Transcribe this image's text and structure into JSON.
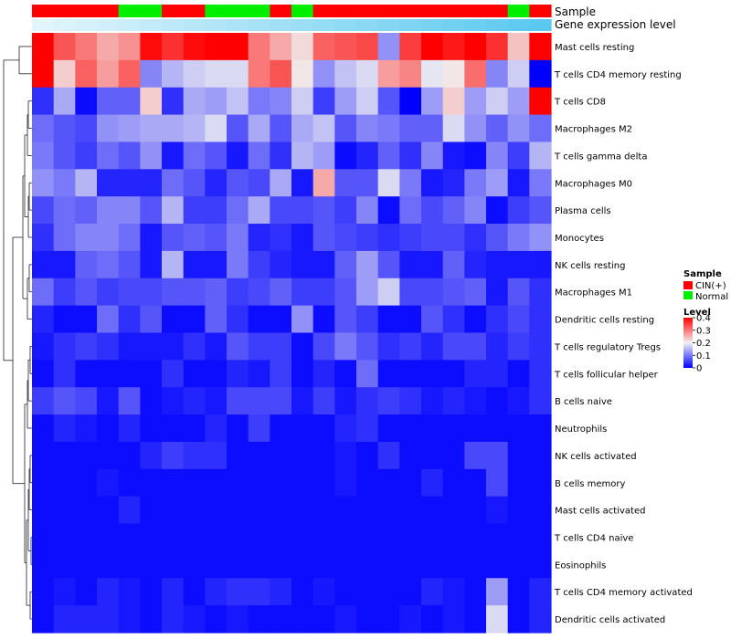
{
  "chart_data": {
    "type": "heatmap",
    "annotation_tracks": [
      "Sample",
      "Gene expression level"
    ],
    "sample_groups": [
      "CIN",
      "CIN",
      "CIN",
      "CIN",
      "Normal",
      "Normal",
      "CIN",
      "CIN",
      "Normal",
      "Normal",
      "Normal",
      "CIN",
      "Normal",
      "CIN",
      "CIN",
      "CIN",
      "CIN",
      "CIN",
      "CIN",
      "CIN",
      "CIN",
      "CIN",
      "Normal",
      "CIN"
    ],
    "rows": [
      "Mast cells resting",
      "T cells CD4 memory resting",
      "T cells CD8",
      "Macrophages M2",
      "T cells gamma delta",
      "Macrophages M0",
      "Plasma cells",
      "Monocytes",
      "NK cells resting",
      "Macrophages M1",
      "Dendritic cells resting",
      "T cells regulatory  Tregs",
      "T cells follicular helper",
      "B cells naive",
      "Neutrophils",
      "NK cells activated",
      "B cells memory",
      "Mast cells activated",
      "T cells CD4 naive",
      "Eosinophils",
      "T cells CD4 memory activated",
      "Dendritic cells activated"
    ],
    "values": [
      [
        0.4,
        0.33,
        0.3,
        0.26,
        0.28,
        0.39,
        0.36,
        0.39,
        0.4,
        0.4,
        0.3,
        0.26,
        0.22,
        0.32,
        0.33,
        0.34,
        0.12,
        0.35,
        0.4,
        0.38,
        0.4,
        0.36,
        0.24,
        0.4
      ],
      [
        0.4,
        0.23,
        0.32,
        0.27,
        0.32,
        0.11,
        0.15,
        0.17,
        0.18,
        0.18,
        0.3,
        0.33,
        0.21,
        0.12,
        0.16,
        0.18,
        0.27,
        0.29,
        0.19,
        0.21,
        0.31,
        0.11,
        0.17,
        0.0
      ],
      [
        0.04,
        0.14,
        0.01,
        0.08,
        0.08,
        0.23,
        0.04,
        0.14,
        0.13,
        0.16,
        0.1,
        0.11,
        0.17,
        0.05,
        0.13,
        0.17,
        0.07,
        0.0,
        0.13,
        0.23,
        0.13,
        0.17,
        0.13,
        0.4
      ],
      [
        0.09,
        0.07,
        0.06,
        0.12,
        0.13,
        0.14,
        0.14,
        0.15,
        0.18,
        0.07,
        0.14,
        0.07,
        0.14,
        0.16,
        0.07,
        0.11,
        0.1,
        0.08,
        0.08,
        0.18,
        0.12,
        0.08,
        0.12,
        0.09
      ],
      [
        0.1,
        0.07,
        0.05,
        0.09,
        0.07,
        0.12,
        0.02,
        0.09,
        0.07,
        0.02,
        0.09,
        0.04,
        0.15,
        0.13,
        0.01,
        0.03,
        0.08,
        0.04,
        0.11,
        0.02,
        0.01,
        0.11,
        0.05,
        0.15
      ],
      [
        0.12,
        0.1,
        0.15,
        0.03,
        0.03,
        0.03,
        0.09,
        0.07,
        0.03,
        0.07,
        0.06,
        0.14,
        0.02,
        0.26,
        0.07,
        0.07,
        0.18,
        0.1,
        0.02,
        0.03,
        0.1,
        0.13,
        0.02,
        0.1
      ],
      [
        0.06,
        0.09,
        0.08,
        0.11,
        0.11,
        0.07,
        0.15,
        0.05,
        0.05,
        0.09,
        0.14,
        0.06,
        0.06,
        0.07,
        0.05,
        0.11,
        0.01,
        0.09,
        0.06,
        0.08,
        0.11,
        0.01,
        0.05,
        0.07
      ],
      [
        0.04,
        0.09,
        0.11,
        0.11,
        0.09,
        0.02,
        0.07,
        0.08,
        0.07,
        0.1,
        0.03,
        0.04,
        0.02,
        0.07,
        0.06,
        0.05,
        0.04,
        0.05,
        0.06,
        0.06,
        0.04,
        0.07,
        0.1,
        0.12
      ],
      [
        0.02,
        0.02,
        0.08,
        0.09,
        0.07,
        0.02,
        0.15,
        0.02,
        0.02,
        0.1,
        0.05,
        0.03,
        0.02,
        0.02,
        0.08,
        0.13,
        0.07,
        0.02,
        0.02,
        0.08,
        0.03,
        0.02,
        0.02,
        0.02
      ],
      [
        0.09,
        0.05,
        0.07,
        0.05,
        0.06,
        0.06,
        0.07,
        0.07,
        0.08,
        0.05,
        0.06,
        0.08,
        0.05,
        0.05,
        0.07,
        0.13,
        0.17,
        0.06,
        0.06,
        0.07,
        0.08,
        0.02,
        0.07,
        0.04
      ],
      [
        0.03,
        0.01,
        0.01,
        0.09,
        0.04,
        0.07,
        0.01,
        0.01,
        0.08,
        0.04,
        0.01,
        0.01,
        0.12,
        0.01,
        0.07,
        0.05,
        0.01,
        0.01,
        0.07,
        0.04,
        0.01,
        0.04,
        0.06,
        0.04
      ],
      [
        0.02,
        0.04,
        0.05,
        0.04,
        0.02,
        0.02,
        0.02,
        0.04,
        0.02,
        0.07,
        0.05,
        0.05,
        0.01,
        0.06,
        0.1,
        0.07,
        0.04,
        0.05,
        0.03,
        0.06,
        0.06,
        0.03,
        0.05,
        0.04
      ],
      [
        0.01,
        0.04,
        0.01,
        0.01,
        0.01,
        0.01,
        0.04,
        0.01,
        0.01,
        0.03,
        0.02,
        0.05,
        0.01,
        0.03,
        0.01,
        0.09,
        0.01,
        0.01,
        0.01,
        0.01,
        0.03,
        0.03,
        0.01,
        0.04
      ],
      [
        0.05,
        0.07,
        0.06,
        0.02,
        0.07,
        0.01,
        0.02,
        0.03,
        0.02,
        0.06,
        0.06,
        0.06,
        0.02,
        0.05,
        0.02,
        0.04,
        0.05,
        0.04,
        0.02,
        0.03,
        0.02,
        0.01,
        0.02,
        0.04
      ],
      [
        0.01,
        0.03,
        0.02,
        0.01,
        0.03,
        0.01,
        0.01,
        0.01,
        0.03,
        0.01,
        0.05,
        0.01,
        0.01,
        0.01,
        0.03,
        0.04,
        0.01,
        0.01,
        0.01,
        0.01,
        0.01,
        0.01,
        0.01,
        0.01
      ],
      [
        0.01,
        0.01,
        0.01,
        0.01,
        0.01,
        0.03,
        0.05,
        0.04,
        0.04,
        0.01,
        0.01,
        0.01,
        0.01,
        0.01,
        0.02,
        0.01,
        0.04,
        0.01,
        0.01,
        0.01,
        0.06,
        0.06,
        0.01,
        0.01
      ],
      [
        0.01,
        0.01,
        0.01,
        0.02,
        0.01,
        0.01,
        0.01,
        0.01,
        0.01,
        0.01,
        0.01,
        0.01,
        0.01,
        0.01,
        0.02,
        0.01,
        0.01,
        0.01,
        0.03,
        0.01,
        0.01,
        0.06,
        0.01,
        0.01
      ],
      [
        0.01,
        0.01,
        0.01,
        0.01,
        0.03,
        0.01,
        0.01,
        0.01,
        0.01,
        0.01,
        0.01,
        0.01,
        0.01,
        0.01,
        0.01,
        0.01,
        0.01,
        0.01,
        0.01,
        0.01,
        0.01,
        0.02,
        0.01,
        0.01
      ],
      [
        0.01,
        0.01,
        0.01,
        0.01,
        0.01,
        0.01,
        0.01,
        0.01,
        0.01,
        0.01,
        0.01,
        0.01,
        0.01,
        0.01,
        0.01,
        0.01,
        0.01,
        0.01,
        0.01,
        0.01,
        0.01,
        0.01,
        0.01,
        0.01
      ],
      [
        0.01,
        0.01,
        0.01,
        0.01,
        0.01,
        0.01,
        0.01,
        0.01,
        0.01,
        0.01,
        0.01,
        0.01,
        0.01,
        0.01,
        0.01,
        0.01,
        0.01,
        0.01,
        0.01,
        0.01,
        0.01,
        0.01,
        0.01,
        0.01
      ],
      [
        0.01,
        0.02,
        0.01,
        0.03,
        0.02,
        0.01,
        0.03,
        0.01,
        0.03,
        0.04,
        0.04,
        0.03,
        0.01,
        0.02,
        0.01,
        0.01,
        0.01,
        0.01,
        0.03,
        0.02,
        0.01,
        0.13,
        0.01,
        0.03
      ],
      [
        0.01,
        0.03,
        0.03,
        0.03,
        0.02,
        0.01,
        0.03,
        0.02,
        0.01,
        0.02,
        0.01,
        0.01,
        0.01,
        0.01,
        0.02,
        0.01,
        0.01,
        0.02,
        0.01,
        0.02,
        0.01,
        0.18,
        0.01,
        0.03
      ]
    ],
    "legend": {
      "sample_title": "Sample",
      "sample_items": [
        {
          "key": "CIN",
          "label": "CIN(+)",
          "color": "#ff0000"
        },
        {
          "key": "Normal",
          "label": "Normal",
          "color": "#00ee00"
        }
      ],
      "level_title": "Level",
      "level_ticks": [
        0.4,
        0.3,
        0.2,
        0.1,
        0
      ],
      "range": [
        0,
        0.4
      ]
    },
    "colors": {
      "low": "#0000ff",
      "mid": "#f2f2f2",
      "high": "#ff0000",
      "expression_bar": "#5bc8ef"
    }
  }
}
